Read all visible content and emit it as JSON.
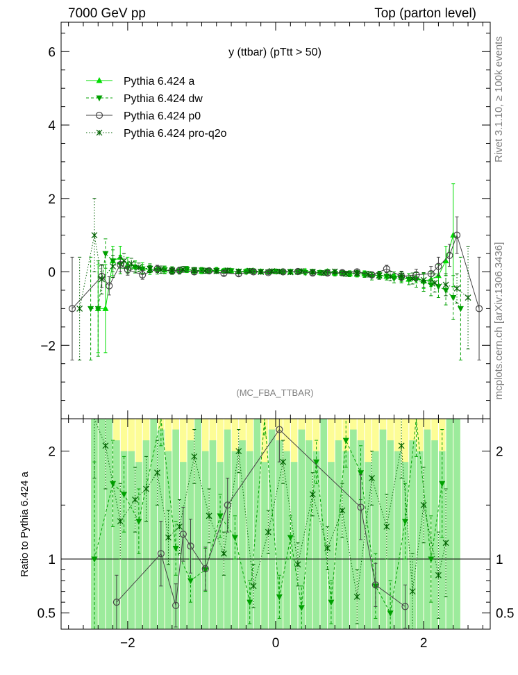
{
  "header": {
    "left": "7000 GeV pp",
    "right": "Top (parton level)"
  },
  "side": {
    "rivet": "Rivet 3.1.10, ≥ 100k events",
    "mcplots": "mcplots.cern.ch [arXiv:1306.3436]"
  },
  "chart_data": [
    {
      "type": "scatter",
      "panel": "main",
      "title": "y (ttbar) (pTtt > 50)",
      "watermark": "(MC_FBA_TTBAR)",
      "xlabel": "",
      "ylabel": "",
      "xlim": [
        -2.9,
        2.9
      ],
      "ylim": [
        -4.0,
        6.8
      ],
      "xticks": [
        -2,
        0,
        2
      ],
      "yticks": [
        -2,
        0,
        2,
        4,
        6
      ],
      "legend_position": "top-left",
      "series": [
        {
          "name": "Pythia 6.424 a",
          "color": "#00dd00",
          "style": "solid",
          "marker": "triangle-up",
          "x": [
            -2.4,
            -2.3,
            -2.2,
            -2.1,
            -2.0,
            -1.9,
            -1.8,
            -1.7,
            -1.6,
            -1.5,
            -1.4,
            -1.3,
            -1.2,
            -1.1,
            -1.0,
            -0.9,
            -0.8,
            -0.7,
            -0.6,
            -0.5,
            -0.4,
            -0.3,
            -0.2,
            -0.1,
            0.0,
            0.1,
            0.2,
            0.3,
            0.4,
            0.5,
            0.6,
            0.7,
            0.8,
            0.9,
            1.0,
            1.1,
            1.2,
            1.3,
            1.4,
            1.5,
            1.6,
            1.7,
            1.8,
            1.9,
            2.0,
            2.1,
            2.2,
            2.3,
            2.4
          ],
          "y": [
            -1.0,
            -1.0,
            0.3,
            0.4,
            0.2,
            0.15,
            0.1,
            0.05,
            0.08,
            0.05,
            0.03,
            0.05,
            0.06,
            0.03,
            0.02,
            0.04,
            0.05,
            0.03,
            0.02,
            0.01,
            0.02,
            0.03,
            0.01,
            0.0,
            0.01,
            0.02,
            0.0,
            -0.01,
            0.02,
            0.0,
            -0.02,
            0.01,
            -0.03,
            -0.04,
            -0.05,
            -0.06,
            -0.05,
            -0.08,
            -0.1,
            -0.12,
            -0.1,
            -0.15,
            -0.2,
            -0.15,
            -0.25,
            -0.2,
            -0.1,
            0.3,
            1.0
          ],
          "err": [
            1.2,
            1.2,
            0.4,
            0.3,
            0.2,
            0.15,
            0.15,
            0.12,
            0.1,
            0.1,
            0.1,
            0.08,
            0.08,
            0.08,
            0.07,
            0.07,
            0.07,
            0.06,
            0.06,
            0.06,
            0.06,
            0.06,
            0.06,
            0.05,
            0.05,
            0.05,
            0.06,
            0.06,
            0.06,
            0.06,
            0.06,
            0.06,
            0.07,
            0.07,
            0.07,
            0.08,
            0.08,
            0.08,
            0.1,
            0.1,
            0.1,
            0.12,
            0.15,
            0.15,
            0.2,
            0.2,
            0.3,
            0.4,
            1.4
          ]
        },
        {
          "name": "Pythia 6.424 dw",
          "color": "#00a000",
          "style": "dashed",
          "marker": "triangle-down",
          "x": [
            -2.5,
            -2.4,
            -2.3,
            -2.2,
            -2.1,
            -2.0,
            -1.9,
            -1.8,
            -1.7,
            -1.6,
            -1.5,
            -1.4,
            -1.3,
            -1.2,
            -1.1,
            -1.0,
            -0.9,
            -0.8,
            -0.7,
            -0.6,
            -0.5,
            -0.4,
            -0.3,
            -0.2,
            -0.1,
            0.0,
            0.1,
            0.2,
            0.3,
            0.4,
            0.5,
            0.6,
            0.7,
            0.8,
            0.9,
            1.0,
            1.1,
            1.2,
            1.3,
            1.4,
            1.5,
            1.6,
            1.7,
            1.8,
            1.9,
            2.0,
            2.1,
            2.2,
            2.3,
            2.4,
            2.5
          ],
          "y": [
            -1.0,
            -1.0,
            0.5,
            0.3,
            0.2,
            0.1,
            0.12,
            0.08,
            0.1,
            0.04,
            0.06,
            0.04,
            0.02,
            0.07,
            0.03,
            0.05,
            0.02,
            0.04,
            0.02,
            0.03,
            0.01,
            0.0,
            0.02,
            0.01,
            0.0,
            0.02,
            -0.01,
            0.01,
            0.0,
            -0.02,
            0.01,
            -0.02,
            0.0,
            -0.04,
            -0.03,
            -0.05,
            -0.04,
            -0.07,
            -0.12,
            -0.08,
            -0.12,
            -0.18,
            -0.15,
            -0.2,
            -0.22,
            -0.28,
            -0.35,
            -0.4,
            -0.5,
            -0.7,
            -1.0
          ],
          "err": [
            1.4,
            1.3,
            0.4,
            0.3,
            0.25,
            0.15,
            0.15,
            0.12,
            0.12,
            0.1,
            0.1,
            0.1,
            0.08,
            0.08,
            0.08,
            0.07,
            0.07,
            0.07,
            0.06,
            0.06,
            0.06,
            0.06,
            0.06,
            0.06,
            0.05,
            0.05,
            0.05,
            0.06,
            0.06,
            0.06,
            0.06,
            0.06,
            0.07,
            0.07,
            0.07,
            0.08,
            0.08,
            0.08,
            0.1,
            0.1,
            0.1,
            0.12,
            0.15,
            0.15,
            0.2,
            0.25,
            0.3,
            0.3,
            0.4,
            0.6,
            1.4
          ]
        },
        {
          "name": "Pythia 6.424 p0",
          "color": "#444444",
          "style": "solid",
          "marker": "open-circle",
          "x": [
            -2.75,
            -2.35,
            -2.25,
            -2.1,
            -2.0,
            -1.8,
            -1.6,
            -1.4,
            -1.3,
            -1.1,
            -0.9,
            -0.7,
            -0.5,
            -0.3,
            -0.1,
            0.1,
            0.3,
            0.5,
            0.7,
            0.9,
            1.1,
            1.3,
            1.5,
            1.7,
            1.9,
            2.1,
            2.2,
            2.35,
            2.45,
            2.75
          ],
          "y": [
            -1.0,
            -0.12,
            -0.38,
            0.2,
            0.06,
            -0.08,
            0.08,
            0.02,
            0.04,
            0.0,
            0.03,
            -0.04,
            -0.05,
            0.0,
            -0.02,
            0.0,
            0.01,
            -0.03,
            -0.03,
            -0.02,
            0.0,
            -0.08,
            0.08,
            -0.12,
            -0.08,
            -0.05,
            0.15,
            0.45,
            1.0,
            -1.0
          ],
          "err": [
            1.4,
            0.3,
            0.25,
            0.2,
            0.15,
            0.12,
            0.1,
            0.08,
            0.08,
            0.07,
            0.07,
            0.06,
            0.06,
            0.06,
            0.05,
            0.05,
            0.06,
            0.06,
            0.06,
            0.07,
            0.07,
            0.08,
            0.1,
            0.12,
            0.15,
            0.2,
            0.25,
            0.3,
            0.5,
            1.4
          ]
        },
        {
          "name": "Pythia 6.424 pro-q2o",
          "color": "#006000",
          "style": "dotted",
          "marker": "star",
          "x": [
            -2.65,
            -2.45,
            -2.35,
            -2.2,
            -2.05,
            -1.95,
            -1.85,
            -1.7,
            -1.55,
            -1.4,
            -1.25,
            -1.1,
            -0.95,
            -0.8,
            -0.65,
            -0.5,
            -0.35,
            -0.2,
            -0.05,
            0.05,
            0.2,
            0.35,
            0.5,
            0.65,
            0.8,
            0.95,
            1.1,
            1.25,
            1.4,
            1.55,
            1.7,
            1.85,
            2.0,
            2.15,
            2.3,
            2.45,
            2.6
          ],
          "y": [
            -1.0,
            1.0,
            -0.2,
            0.15,
            0.3,
            0.22,
            0.12,
            0.08,
            0.06,
            0.04,
            0.07,
            0.05,
            0.03,
            0.02,
            0.04,
            0.01,
            0.03,
            0.0,
            0.02,
            0.01,
            -0.01,
            0.02,
            0.0,
            -0.03,
            0.01,
            -0.05,
            -0.04,
            -0.06,
            -0.1,
            -0.12,
            -0.1,
            -0.18,
            -0.22,
            -0.3,
            -0.35,
            -0.45,
            -0.7
          ],
          "err": [
            1.4,
            1.0,
            0.4,
            0.3,
            0.2,
            0.15,
            0.12,
            0.1,
            0.1,
            0.08,
            0.08,
            0.07,
            0.07,
            0.06,
            0.06,
            0.06,
            0.06,
            0.05,
            0.05,
            0.05,
            0.05,
            0.06,
            0.06,
            0.06,
            0.06,
            0.07,
            0.07,
            0.08,
            0.1,
            0.12,
            0.12,
            0.15,
            0.2,
            0.25,
            0.3,
            0.4,
            1.4
          ]
        }
      ]
    },
    {
      "type": "scatter",
      "panel": "ratio",
      "ylabel": "Ratio to Pythia 6.424 a",
      "xlim": [
        -2.9,
        2.9
      ],
      "ylim": [
        0.35,
        2.3
      ],
      "xticks": [
        -2,
        0,
        2
      ],
      "yticks": [
        0.5,
        1,
        2
      ],
      "reference": 1.0,
      "bands": {
        "x": [
          -2.45,
          -2.35,
          -2.25,
          -2.15,
          -2.05,
          -1.95,
          -1.85,
          -1.75,
          -1.65,
          -1.55,
          -1.45,
          -1.35,
          -1.25,
          -1.15,
          -1.05,
          -0.95,
          -0.85,
          -0.75,
          -0.65,
          -0.55,
          -0.45,
          -0.35,
          -0.25,
          -0.15,
          -0.05,
          0.05,
          0.15,
          0.25,
          0.35,
          0.45,
          0.55,
          0.65,
          0.75,
          0.85,
          0.95,
          1.05,
          1.15,
          1.25,
          1.35,
          1.45,
          1.55,
          1.65,
          1.75,
          1.85,
          1.95,
          2.05,
          2.15,
          2.25,
          2.35,
          2.45
        ],
        "green_lo": [
          0.35,
          0.35,
          0.35,
          0.35,
          0.35,
          0.35,
          0.35,
          0.35,
          0.35,
          0.35,
          0.35,
          0.35,
          0.35,
          0.35,
          0.35,
          0.35,
          0.35,
          0.35,
          0.35,
          0.35,
          0.35,
          0.35,
          0.35,
          0.35,
          0.35,
          0.35,
          0.35,
          0.35,
          0.35,
          0.35,
          0.35,
          0.35,
          0.35,
          0.35,
          0.35,
          0.35,
          0.35,
          0.35,
          0.35,
          0.35,
          0.35,
          0.35,
          0.35,
          0.35,
          0.35,
          0.35,
          0.35,
          0.35,
          0.35,
          0.35
        ],
        "green_hi": [
          2.3,
          2.3,
          2.3,
          2.1,
          2.0,
          2.0,
          1.9,
          2.1,
          2.3,
          2.2,
          2.0,
          2.2,
          1.9,
          2.1,
          2.3,
          2.0,
          2.1,
          1.9,
          2.2,
          2.0,
          2.1,
          2.0,
          2.3,
          1.9,
          2.2,
          2.1,
          2.0,
          1.9,
          2.2,
          2.1,
          2.0,
          2.3,
          1.9,
          2.1,
          2.0,
          2.2,
          2.1,
          1.9,
          2.0,
          2.2,
          2.1,
          2.0,
          1.9,
          2.1,
          2.0,
          2.2,
          2.1,
          2.0,
          2.3,
          2.3
        ],
        "yellow_hi": [
          2.3,
          2.3,
          2.3,
          2.3,
          2.3,
          2.3,
          2.3,
          2.3,
          2.3,
          2.3,
          2.3,
          2.3,
          2.3,
          2.3,
          2.3,
          2.3,
          2.3,
          2.3,
          2.3,
          2.3,
          2.3,
          2.3,
          2.3,
          2.3,
          2.3,
          2.3,
          2.3,
          2.3,
          2.3,
          2.3,
          2.3,
          2.3,
          2.3,
          2.3,
          2.3,
          2.3,
          2.3,
          2.3,
          2.3,
          2.3,
          2.3,
          2.3,
          2.3,
          2.3,
          2.3,
          2.3,
          2.3,
          2.3,
          2.3,
          2.3
        ]
      },
      "series": [
        {
          "name": "Pythia 6.424 dw",
          "color": "#00a000",
          "style": "dashed",
          "marker": "triangle-down",
          "x": [
            -2.45,
            -2.2,
            -2.05,
            -1.85,
            -1.55,
            -1.35,
            -1.15,
            -0.95,
            -0.75,
            -0.55,
            -0.35,
            -0.15,
            0.05,
            0.2,
            0.35,
            0.55,
            0.75,
            0.95,
            1.15,
            1.35,
            1.55,
            1.75,
            1.9,
            2.1,
            2.25
          ],
          "y": [
            1.0,
            1.7,
            1.6,
            1.35,
            2.35,
            1.1,
            0.8,
            0.9,
            1.4,
            1.2,
            0.6,
            2.35,
            0.65,
            1.2,
            0.55,
            1.9,
            0.6,
            2.1,
            1.8,
            0.75,
            0.5,
            1.35,
            2.35,
            1.0,
            1.7
          ],
          "err": [
            0.9,
            0.4,
            0.35,
            0.3,
            0.3,
            0.25,
            0.2,
            0.2,
            0.2,
            0.2,
            0.2,
            0.2,
            0.2,
            0.2,
            0.2,
            0.2,
            0.2,
            0.25,
            0.25,
            0.3,
            0.3,
            0.35,
            0.4,
            0.4,
            0.5
          ]
        },
        {
          "name": "Pythia 6.424 p0",
          "color": "#444444",
          "style": "solid",
          "marker": "open-circle",
          "x": [
            -2.15,
            -1.55,
            -1.35,
            -1.25,
            -1.15,
            -0.95,
            -0.65,
            0.05,
            1.15,
            1.35,
            1.75
          ],
          "y": [
            0.6,
            1.05,
            0.57,
            1.23,
            1.12,
            0.91,
            1.5,
            2.2,
            1.48,
            0.76,
            0.56
          ],
          "err": [
            0.25,
            0.3,
            0.2,
            0.25,
            0.25,
            0.2,
            0.25,
            0.3,
            0.3,
            0.2,
            0.2
          ]
        },
        {
          "name": "Pythia 6.424 pro-q2o",
          "color": "#006000",
          "style": "dotted",
          "marker": "star",
          "x": [
            -2.45,
            -2.3,
            -2.1,
            -1.9,
            -1.75,
            -1.6,
            -1.45,
            -1.3,
            -1.1,
            -0.9,
            -0.7,
            -0.5,
            -0.3,
            -0.1,
            0.1,
            0.3,
            0.5,
            0.7,
            0.9,
            1.1,
            1.3,
            1.5,
            1.7,
            1.85,
            2.0,
            2.2,
            2.3
          ],
          "y": [
            2.35,
            2.05,
            1.35,
            1.55,
            1.65,
            1.8,
            1.2,
            1.3,
            1.95,
            1.4,
            1.05,
            2.0,
            0.75,
            1.25,
            1.9,
            0.95,
            1.6,
            1.1,
            1.45,
            0.65,
            1.75,
            1.3,
            2.05,
            0.7,
            1.5,
            0.85,
            1.15
          ],
          "err": [
            0.6,
            0.4,
            0.35,
            0.3,
            0.3,
            0.3,
            0.25,
            0.25,
            0.25,
            0.25,
            0.2,
            0.2,
            0.2,
            0.2,
            0.2,
            0.2,
            0.2,
            0.2,
            0.25,
            0.25,
            0.25,
            0.3,
            0.3,
            0.35,
            0.35,
            0.4,
            0.5
          ]
        }
      ]
    }
  ]
}
